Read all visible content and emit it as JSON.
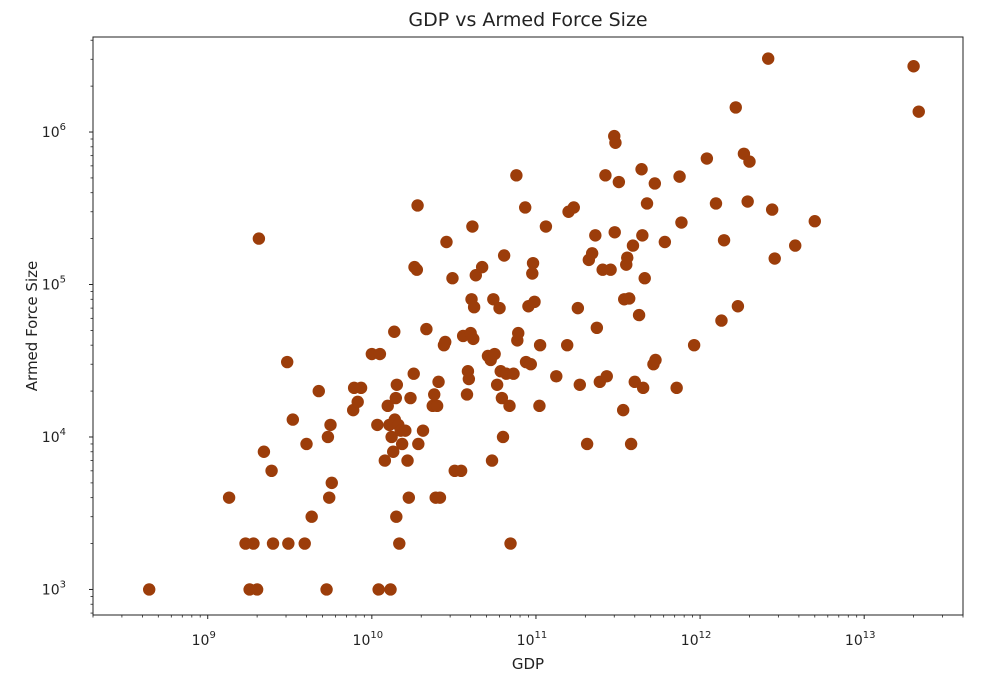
{
  "chart_data": {
    "type": "scatter",
    "title": "GDP vs Armed Force Size",
    "xlabel": "GDP",
    "ylabel": "Armed Force Size",
    "xscale": "log",
    "yscale": "log",
    "xlim": [
      200000000,
      40000000000000
    ],
    "ylim": [
      680,
      4200000
    ],
    "x_ticks": [
      {
        "value": 1000000000,
        "base": "10",
        "exp": "9"
      },
      {
        "value": 10000000000,
        "base": "10",
        "exp": "10"
      },
      {
        "value": 100000000000,
        "base": "10",
        "exp": "11"
      },
      {
        "value": 1000000000000,
        "base": "10",
        "exp": "12"
      },
      {
        "value": 10000000000000,
        "base": "10",
        "exp": "13"
      }
    ],
    "y_ticks": [
      {
        "value": 1000,
        "base": "10",
        "exp": "3"
      },
      {
        "value": 10000,
        "base": "10",
        "exp": "4"
      },
      {
        "value": 100000,
        "base": "10",
        "exp": "5"
      },
      {
        "value": 1000000,
        "base": "10",
        "exp": "6"
      }
    ],
    "grid": false,
    "marker_color": "#9c3d0a",
    "points": [
      [
        440000000.0,
        1000
      ],
      [
        1350000000.0,
        4000
      ],
      [
        1700000000.0,
        2000
      ],
      [
        1800000000.0,
        1000
      ],
      [
        1900000000.0,
        2000
      ],
      [
        2000000000.0,
        1000
      ],
      [
        2050000000.0,
        200000
      ],
      [
        2200000000.0,
        8000
      ],
      [
        2450000000.0,
        6000
      ],
      [
        2500000000.0,
        2000
      ],
      [
        3100000000.0,
        2000
      ],
      [
        3050000000.0,
        31000
      ],
      [
        3300000000.0,
        13000
      ],
      [
        3900000000.0,
        2000
      ],
      [
        4000000000.0,
        9000
      ],
      [
        4300000000.0,
        3000
      ],
      [
        4750000000.0,
        20000
      ],
      [
        5300000000.0,
        1000
      ],
      [
        5400000000.0,
        10000
      ],
      [
        5500000000.0,
        4000
      ],
      [
        5600000000.0,
        12000
      ],
      [
        5700000000.0,
        5000
      ],
      [
        7700000000.0,
        15000
      ],
      [
        7800000000.0,
        21000
      ],
      [
        8200000000.0,
        17000
      ],
      [
        8600000000.0,
        21000
      ],
      [
        10000000000.0,
        35000
      ],
      [
        10800000000.0,
        12000
      ],
      [
        11000000000.0,
        1000
      ],
      [
        11200000000.0,
        35000
      ],
      [
        12000000000.0,
        7000
      ],
      [
        12500000000.0,
        16000
      ],
      [
        12800000000.0,
        12000
      ],
      [
        13000000000.0,
        1000
      ],
      [
        13200000000.0,
        10000
      ],
      [
        13500000000.0,
        8000
      ],
      [
        13700000000.0,
        49000
      ],
      [
        13800000000.0,
        13000
      ],
      [
        14000000000.0,
        18000
      ],
      [
        14100000000.0,
        3000
      ],
      [
        14200000000.0,
        22000
      ],
      [
        14500000000.0,
        12000
      ],
      [
        14700000000.0,
        2000
      ],
      [
        15000000000.0,
        11000
      ],
      [
        15300000000.0,
        9000
      ],
      [
        16000000000.0,
        11000
      ],
      [
        16500000000.0,
        7000
      ],
      [
        16800000000.0,
        4000
      ],
      [
        17200000000.0,
        18000
      ],
      [
        18000000000.0,
        26000
      ],
      [
        18200000000.0,
        130000
      ],
      [
        18800000000.0,
        125000
      ],
      [
        19000000000.0,
        330000
      ],
      [
        19200000000.0,
        9000
      ],
      [
        20500000000.0,
        11000
      ],
      [
        21500000000.0,
        51000
      ],
      [
        23500000000.0,
        16000
      ],
      [
        24000000000.0,
        19000
      ],
      [
        24500000000.0,
        4000
      ],
      [
        25000000000.0,
        16000
      ],
      [
        25500000000.0,
        23000
      ],
      [
        26000000000.0,
        4000
      ],
      [
        27500000000.0,
        40000
      ],
      [
        28000000000.0,
        42000
      ],
      [
        28500000000.0,
        190000
      ],
      [
        31000000000.0,
        110000
      ],
      [
        32000000000.0,
        6000
      ],
      [
        35000000000.0,
        6000
      ],
      [
        36000000000.0,
        46000
      ],
      [
        38000000000.0,
        19000
      ],
      [
        38500000000.0,
        27000
      ],
      [
        39000000000.0,
        24000
      ],
      [
        40000000000.0,
        48000
      ],
      [
        40500000000.0,
        80000
      ],
      [
        41000000000.0,
        240000
      ],
      [
        41500000000.0,
        44000
      ],
      [
        42000000000.0,
        71000
      ],
      [
        43000000000.0,
        115000
      ],
      [
        47000000000.0,
        130000
      ],
      [
        51000000000.0,
        34000
      ],
      [
        53000000000.0,
        32000
      ],
      [
        54000000000.0,
        7000
      ],
      [
        55000000000.0,
        80000
      ],
      [
        56000000000.0,
        35000
      ],
      [
        58000000000.0,
        22000
      ],
      [
        60000000000.0,
        70000
      ],
      [
        61000000000.0,
        27000
      ],
      [
        62000000000.0,
        18000
      ],
      [
        63000000000.0,
        10000
      ],
      [
        64000000000.0,
        155000
      ],
      [
        66000000000.0,
        26000
      ],
      [
        69000000000.0,
        16000
      ],
      [
        70000000000.0,
        2000
      ],
      [
        73000000000.0,
        26000
      ],
      [
        76000000000.0,
        520000
      ],
      [
        77000000000.0,
        43000
      ],
      [
        78000000000.0,
        48000
      ],
      [
        86000000000.0,
        320000
      ],
      [
        87000000000.0,
        31000
      ],
      [
        90000000000.0,
        72000
      ],
      [
        93000000000.0,
        30000
      ],
      [
        95000000000.0,
        118000
      ],
      [
        96000000000.0,
        138000
      ],
      [
        98000000000.0,
        77000
      ],
      [
        105000000000.0,
        16000
      ],
      [
        106000000000.0,
        40000
      ],
      [
        115000000000.0,
        240000
      ],
      [
        133000000000.0,
        25000
      ],
      [
        155000000000.0,
        40000
      ],
      [
        158000000000.0,
        300000
      ],
      [
        170000000000.0,
        320000
      ],
      [
        180000000000.0,
        70000
      ],
      [
        185000000000.0,
        22000
      ],
      [
        205000000000.0,
        9000
      ],
      [
        210000000000.0,
        145000
      ],
      [
        220000000000.0,
        160000
      ],
      [
        230000000000.0,
        210000
      ],
      [
        235000000000.0,
        52000
      ],
      [
        245000000000.0,
        23000
      ],
      [
        255000000000.0,
        125000
      ],
      [
        265000000000.0,
        520000
      ],
      [
        270000000000.0,
        25000
      ],
      [
        285000000000.0,
        125000
      ],
      [
        300000000000.0,
        940000
      ],
      [
        302000000000.0,
        220000
      ],
      [
        305000000000.0,
        850000
      ],
      [
        320000000000.0,
        470000
      ],
      [
        340000000000.0,
        15000
      ],
      [
        345000000000.0,
        80000
      ],
      [
        355000000000.0,
        135000
      ],
      [
        360000000000.0,
        150000
      ],
      [
        370000000000.0,
        81000
      ],
      [
        380000000000.0,
        9000
      ],
      [
        390000000000.0,
        180000
      ],
      [
        400000000000.0,
        23000
      ],
      [
        425000000000.0,
        63000
      ],
      [
        440000000000.0,
        570000
      ],
      [
        445000000000.0,
        210000
      ],
      [
        450000000000.0,
        21000
      ],
      [
        460000000000.0,
        110000
      ],
      [
        475000000000.0,
        340000
      ],
      [
        520000000000.0,
        30000
      ],
      [
        530000000000.0,
        460000
      ],
      [
        535000000000.0,
        32000
      ],
      [
        610000000000.0,
        190000
      ],
      [
        720000000000.0,
        21000
      ],
      [
        750000000000.0,
        510000
      ],
      [
        770000000000.0,
        255000
      ],
      [
        920000000000.0,
        40000
      ],
      [
        1100000000000.0,
        670000
      ],
      [
        1250000000000.0,
        340000
      ],
      [
        1350000000000.0,
        58000
      ],
      [
        1400000000000.0,
        195000
      ],
      [
        1650000000000.0,
        1450000
      ],
      [
        1700000000000.0,
        72000
      ],
      [
        1850000000000.0,
        720000
      ],
      [
        1950000000000.0,
        350000
      ],
      [
        2000000000000.0,
        640000
      ],
      [
        2600000000000.0,
        3030000
      ],
      [
        2750000000000.0,
        310000
      ],
      [
        2850000000000.0,
        148000
      ],
      [
        3800000000000.0,
        180000
      ],
      [
        5000000000000.0,
        260000
      ],
      [
        20000000000000.0,
        2700000
      ],
      [
        21500000000000.0,
        1360000
      ]
    ]
  }
}
